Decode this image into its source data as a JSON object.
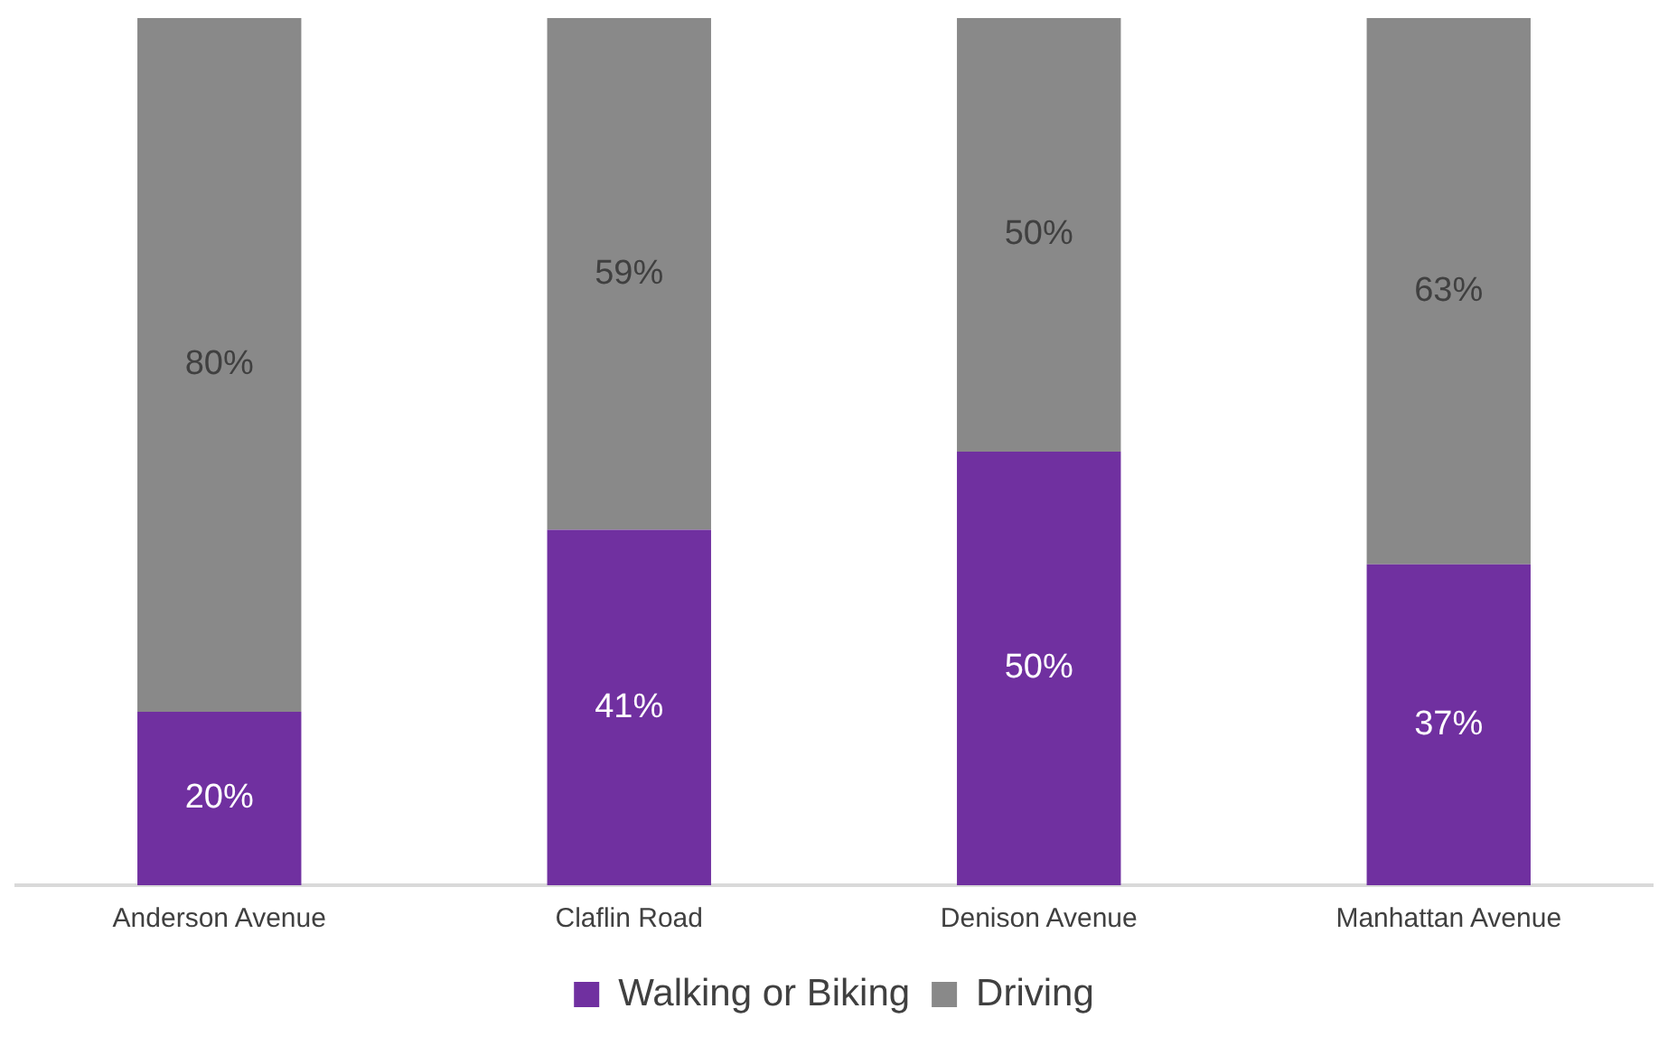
{
  "chart_data": {
    "type": "bar",
    "stacked": true,
    "legend": "bottom",
    "categories": [
      "Anderson Avenue",
      "Claflin Road",
      "Denison Avenue",
      "Manhattan Avenue"
    ],
    "series": [
      {
        "name": "Walking or Biking",
        "color": "#7030a0",
        "values": [
          20,
          41,
          50,
          37
        ],
        "value_labels": [
          "20%",
          "41%",
          "50%",
          "37%"
        ]
      },
      {
        "name": "Driving",
        "color": "#898989",
        "values": [
          80,
          59,
          50,
          63
        ],
        "value_labels": [
          "80%",
          "59%",
          "50%",
          "63%"
        ]
      }
    ]
  }
}
